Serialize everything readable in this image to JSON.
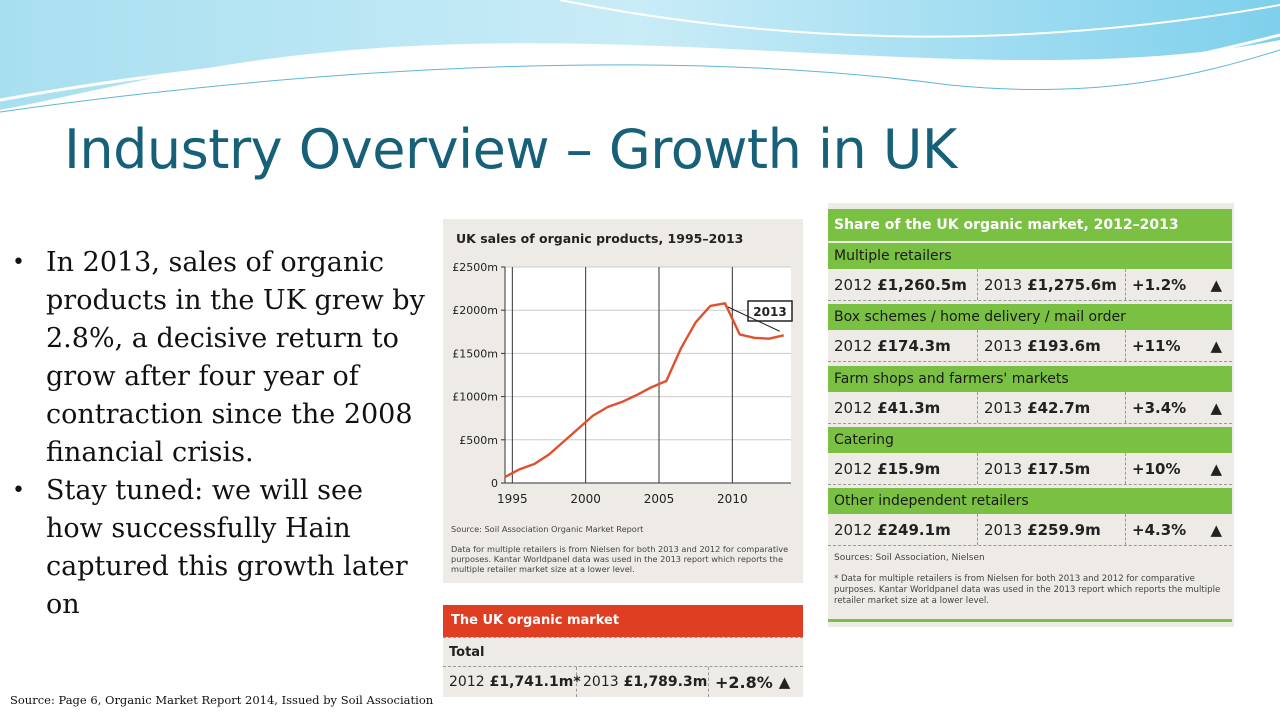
{
  "slide": {
    "title": "Industry Overview – Growth in UK",
    "bullets": [
      "In 2013, sales of organic products in the UK grew by 2.8%, a decisive return to grow after four year of contraction since the 2008 financial crisis.",
      "Stay tuned: we will see how successfully Hain captured this growth later on"
    ],
    "source": "Source: Page 6, Organic Market Report 2014, Issued by Soil Association"
  },
  "chart_panel": {
    "title": "UK sales of organic products, 1995–2013",
    "callout": "2013",
    "source": "Source: Soil Association Organic Market Report",
    "note": "Data for multiple retailers is from Nielsen for both 2013 and 2012 for comparative purposes. Kantar Worldpanel data was used in the 2013 report which reports the multiple retailer market size at a lower level."
  },
  "chart_data": {
    "type": "line",
    "title": "UK sales of organic products, 1995–2013",
    "xlabel": "",
    "ylabel": "",
    "x_ticks": [
      "1995",
      "2000",
      "2005",
      "2010"
    ],
    "y_ticks": [
      "0",
      "£500m",
      "£1000m",
      "£1500m",
      "£2000m",
      "£2500m"
    ],
    "xlim": [
      1994.5,
      2014
    ],
    "ylim": [
      0,
      2500
    ],
    "grid": true,
    "color": "#e0502e",
    "x": [
      1994.5,
      1995.5,
      1996.5,
      1997.5,
      1998.5,
      1999.5,
      2000.5,
      2001.5,
      2002.5,
      2003.5,
      2004.5,
      2005.5,
      2006.5,
      2007.5,
      2008.5,
      2009.5,
      2010.5,
      2011.5,
      2012.5,
      2013.5
    ],
    "values": [
      70,
      160,
      220,
      330,
      480,
      630,
      780,
      880,
      940,
      1020,
      1110,
      1180,
      1560,
      1860,
      2050,
      2080,
      1720,
      1680,
      1670,
      1710
    ]
  },
  "uk_market": {
    "header": "The UK organic market",
    "label": "Total",
    "y2012": "2012",
    "v2012": "£1,741.1m*",
    "y2013": "2013",
    "v2013": "£1,789.3m",
    "change": "+2.8%",
    "arrow": "▲"
  },
  "share": {
    "header": "Share of the UK organic market, 2012–2013",
    "rows": [
      {
        "category": "Multiple retailers",
        "y2012": "2012",
        "v2012": "£1,260.5m",
        "y2013": "2013",
        "v2013": "£1,275.6m",
        "change": "+1.2%",
        "arrow": "▲"
      },
      {
        "category": "Box schemes / home delivery / mail order",
        "y2012": "2012",
        "v2012": "£174.3m",
        "y2013": "2013",
        "v2013": "£193.6m",
        "change": "+11%",
        "arrow": "▲"
      },
      {
        "category": "Farm shops and farmers' markets",
        "y2012": "2012",
        "v2012": "£41.3m",
        "y2013": "2013",
        "v2013": "£42.7m",
        "change": "+3.4%",
        "arrow": "▲"
      },
      {
        "category": "Catering",
        "y2012": "2012",
        "v2012": "£15.9m",
        "y2013": "2013",
        "v2013": "£17.5m",
        "change": "+10%",
        "arrow": "▲"
      },
      {
        "category": "Other independent retailers",
        "y2012": "2012",
        "v2012": "£249.1m",
        "y2013": "2013",
        "v2013": "£259.9m",
        "change": "+4.3%",
        "arrow": "▲"
      }
    ],
    "sources": "Sources: Soil Association, Nielsen",
    "note": "* Data for multiple retailers is from Nielsen for both 2013 and 2012 for comparative purposes. Kantar Worldpanel data was used in the 2013 report which reports the multiple retailer market size at a lower level."
  },
  "colors": {
    "title": "#17607a",
    "green": "#7ac143",
    "red": "#e03e23",
    "line": "#e0502e"
  }
}
